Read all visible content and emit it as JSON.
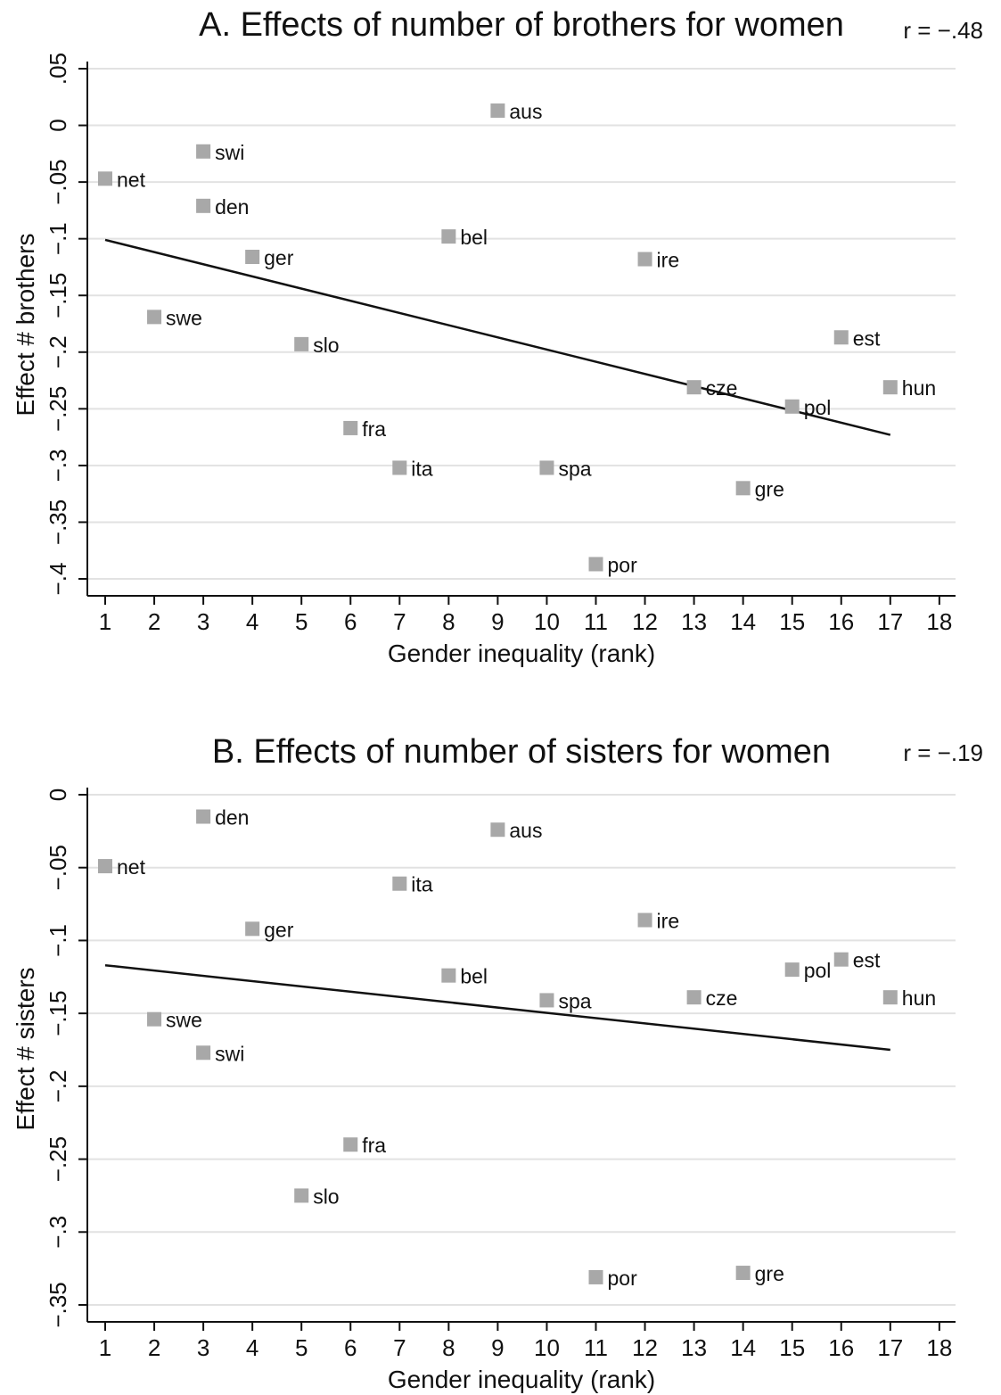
{
  "chart_data": [
    {
      "type": "scatter",
      "title": "A. Effects of number of brothers for women",
      "r_label": "r = −.48",
      "xlabel": "Gender inequality (rank)",
      "ylabel": "Effect # brothers",
      "xlim": [
        1,
        18
      ],
      "ylim": [
        -0.4,
        0.05
      ],
      "xticks": [
        1,
        2,
        3,
        4,
        5,
        6,
        7,
        8,
        9,
        10,
        11,
        12,
        13,
        14,
        15,
        16,
        17,
        18
      ],
      "yticks": [
        -0.4,
        -0.35,
        -0.3,
        -0.25,
        -0.2,
        -0.15,
        -0.1,
        -0.05,
        0,
        0.05
      ],
      "ytick_labels": [
        "−.4",
        "−.35",
        "−.3",
        "−.25",
        "−.2",
        "−.15",
        "−.1",
        "−.05",
        "0",
        ".05"
      ],
      "grid": true,
      "points": [
        {
          "label": "net",
          "x": 1,
          "y": -0.047
        },
        {
          "label": "swe",
          "x": 2,
          "y": -0.169
        },
        {
          "label": "swi",
          "x": 3,
          "y": -0.023
        },
        {
          "label": "den",
          "x": 3,
          "y": -0.071
        },
        {
          "label": "ger",
          "x": 4,
          "y": -0.116
        },
        {
          "label": "slo",
          "x": 5,
          "y": -0.193
        },
        {
          "label": "fra",
          "x": 6,
          "y": -0.267
        },
        {
          "label": "ita",
          "x": 7,
          "y": -0.302
        },
        {
          "label": "bel",
          "x": 8,
          "y": -0.098
        },
        {
          "label": "aus",
          "x": 9,
          "y": 0.013
        },
        {
          "label": "spa",
          "x": 10,
          "y": -0.302
        },
        {
          "label": "por",
          "x": 11,
          "y": -0.387
        },
        {
          "label": "ire",
          "x": 12,
          "y": -0.118
        },
        {
          "label": "cze",
          "x": 13,
          "y": -0.231
        },
        {
          "label": "gre",
          "x": 14,
          "y": -0.32
        },
        {
          "label": "pol",
          "x": 15,
          "y": -0.248
        },
        {
          "label": "est",
          "x": 16,
          "y": -0.187
        },
        {
          "label": "hun",
          "x": 17,
          "y": -0.231
        }
      ],
      "fit_line": {
        "x": [
          1,
          17
        ],
        "y": [
          -0.101,
          -0.273
        ]
      }
    },
    {
      "type": "scatter",
      "title": "B. Effects of number of sisters for women",
      "r_label": "r = −.19",
      "xlabel": "Gender inequality (rank)",
      "ylabel": "Effect # sisters",
      "xlim": [
        1,
        18
      ],
      "ylim": [
        -0.35,
        0
      ],
      "xticks": [
        1,
        2,
        3,
        4,
        5,
        6,
        7,
        8,
        9,
        10,
        11,
        12,
        13,
        14,
        15,
        16,
        17,
        18
      ],
      "yticks": [
        -0.35,
        -0.3,
        -0.25,
        -0.2,
        -0.15,
        -0.1,
        -0.05,
        0
      ],
      "ytick_labels": [
        "−.35",
        "−.3",
        "−.25",
        "−.2",
        "−.15",
        "−.1",
        "−.05",
        "0"
      ],
      "grid": true,
      "points": [
        {
          "label": "net",
          "x": 1,
          "y": -0.049
        },
        {
          "label": "swe",
          "x": 2,
          "y": -0.154
        },
        {
          "label": "den",
          "x": 3,
          "y": -0.015
        },
        {
          "label": "swi",
          "x": 3,
          "y": -0.177
        },
        {
          "label": "ger",
          "x": 4,
          "y": -0.092
        },
        {
          "label": "slo",
          "x": 5,
          "y": -0.275
        },
        {
          "label": "fra",
          "x": 6,
          "y": -0.24
        },
        {
          "label": "ita",
          "x": 7,
          "y": -0.061
        },
        {
          "label": "bel",
          "x": 8,
          "y": -0.124
        },
        {
          "label": "aus",
          "x": 9,
          "y": -0.024
        },
        {
          "label": "spa",
          "x": 10,
          "y": -0.141
        },
        {
          "label": "por",
          "x": 11,
          "y": -0.331
        },
        {
          "label": "ire",
          "x": 12,
          "y": -0.086
        },
        {
          "label": "cze",
          "x": 13,
          "y": -0.139
        },
        {
          "label": "gre",
          "x": 14,
          "y": -0.328
        },
        {
          "label": "pol",
          "x": 15,
          "y": -0.12
        },
        {
          "label": "est",
          "x": 16,
          "y": -0.113
        },
        {
          "label": "hun",
          "x": 17,
          "y": -0.139
        }
      ],
      "fit_line": {
        "x": [
          1,
          17
        ],
        "y": [
          -0.117,
          -0.175
        ]
      }
    }
  ]
}
